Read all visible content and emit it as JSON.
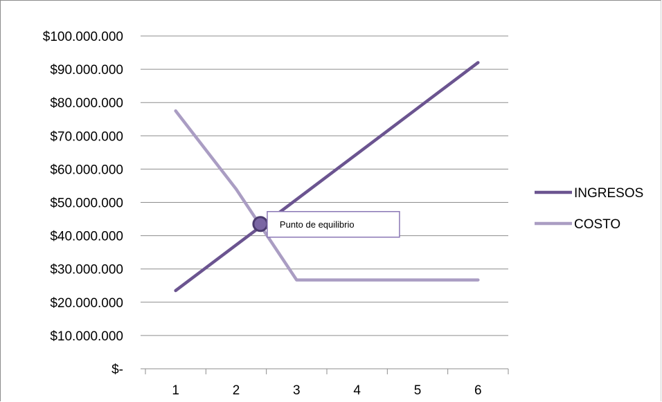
{
  "chart_data": {
    "type": "line",
    "x": [
      1,
      2,
      3,
      4,
      5,
      6
    ],
    "series": [
      {
        "name": "INGRESOS",
        "color": "#6b5490",
        "values": [
          23500000,
          37200000,
          50900000,
          64600000,
          78300000,
          92000000
        ]
      },
      {
        "name": "COSTO",
        "color": "#aa9dc3",
        "values": [
          77500000,
          54000000,
          26700000,
          26700000,
          26700000,
          26700000
        ]
      }
    ],
    "ylim": [
      0,
      100000000
    ],
    "ytick_values": [
      0,
      10000000,
      20000000,
      30000000,
      40000000,
      50000000,
      60000000,
      70000000,
      80000000,
      90000000,
      100000000
    ],
    "ytick_labels": [
      "$-",
      "$10.000.000",
      "$20.000.000",
      "$30.000.000",
      "$40.000.000",
      "$50.000.000",
      "$60.000.000",
      "$70.000.000",
      "$80.000.000",
      "$90.000.000",
      "$100.000.000"
    ],
    "xtick_labels": [
      "1",
      "2",
      "3",
      "4",
      "5",
      "6"
    ],
    "grid": "horizontal",
    "legend_position": "right",
    "title": "",
    "xlabel": "",
    "ylabel": "",
    "annotation": {
      "text": "Punto de equilibrio",
      "x": 2.4,
      "y": 43500000
    }
  }
}
